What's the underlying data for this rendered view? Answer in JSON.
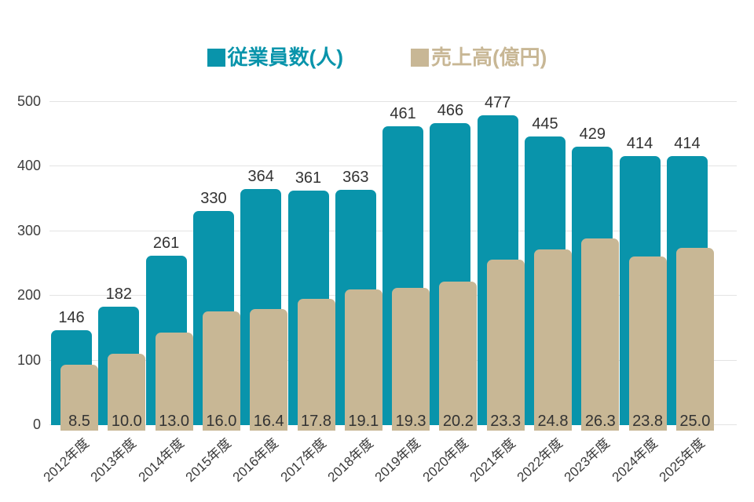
{
  "chart_data": {
    "type": "bar",
    "title": "",
    "categories": [
      "2012年度",
      "2013年度",
      "2014年度",
      "2015年度",
      "2016年度",
      "2017年度",
      "2018年度",
      "2019年度",
      "2020年度",
      "2021年度",
      "2022年度",
      "2023年度",
      "2024年度",
      "2025年度"
    ],
    "series": [
      {
        "name": "従業員数(人)",
        "color": "#0994ab",
        "values": [
          146,
          182,
          261,
          330,
          364,
          361,
          363,
          461,
          466,
          477,
          445,
          429,
          414,
          414
        ],
        "labels": [
          "146",
          "182",
          "261",
          "330",
          "364",
          "361",
          "363",
          "461",
          "466",
          "477",
          "445",
          "429",
          "414",
          "414"
        ]
      },
      {
        "name": "売上高(億円)",
        "color": "#c8b795",
        "values": [
          8.5,
          10.0,
          13.0,
          16.0,
          16.4,
          17.8,
          19.1,
          19.3,
          20.2,
          23.3,
          24.8,
          26.3,
          23.8,
          25.0
        ],
        "labels": [
          "8.5",
          "10.0",
          "13.0",
          "16.0",
          "16.4",
          "17.8",
          "19.1",
          "19.3",
          "20.2",
          "23.3",
          "24.8",
          "26.3",
          "23.8",
          "25.0"
        ]
      }
    ],
    "ylim": [
      0,
      500
    ],
    "yticks": [
      0,
      100,
      200,
      300,
      400,
      500
    ],
    "ytick_labels": [
      "0",
      "100",
      "200",
      "300",
      "400",
      "500"
    ],
    "grid": "horizontal",
    "legend_position": "top-center",
    "xlabel": "",
    "ylabel": "",
    "sales_bar_scale_to_left_axis": 10.9
  },
  "colors": {
    "background": "#ffffff",
    "gridline": "#e3e3e3",
    "value_label_text": "#333333",
    "axis_text": "#3d3d3d"
  }
}
